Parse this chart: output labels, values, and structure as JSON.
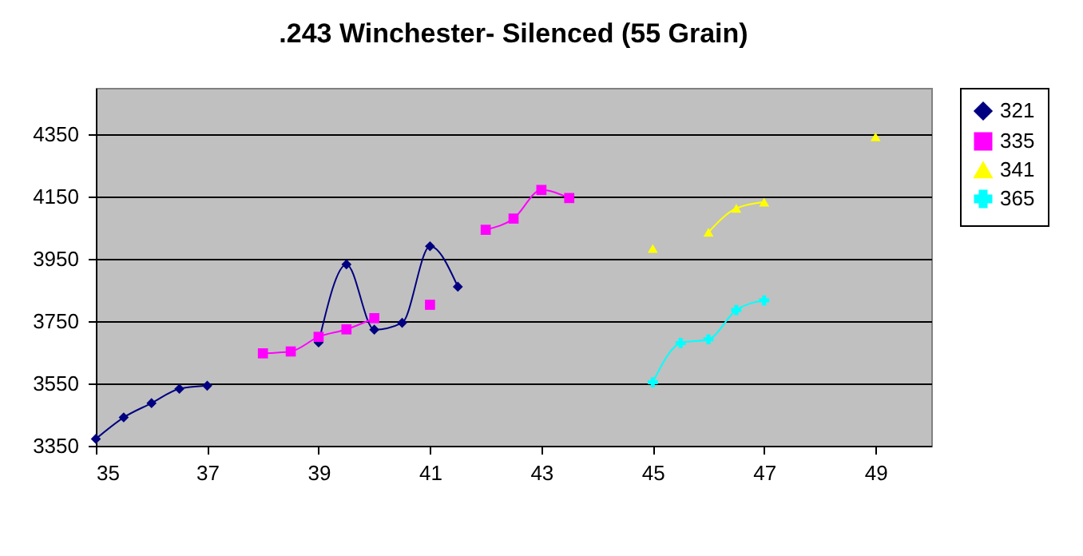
{
  "chart_data": {
    "type": "line",
    "title": ".243 Winchester- Silenced (55 Grain)",
    "xlim": [
      35,
      50
    ],
    "xticks": [
      35,
      37,
      39,
      41,
      43,
      45,
      47,
      49
    ],
    "ylim": [
      3350,
      4500
    ],
    "yticks": [
      3350,
      3550,
      3750,
      3950,
      4150,
      4350
    ],
    "grid": "y",
    "legend": "right",
    "line_style": "solid",
    "series": [
      {
        "name": "321",
        "color": "#000080",
        "marker": "diamond",
        "x": [
          35,
          35.5,
          36,
          36.5,
          37,
          38,
          39,
          39.5,
          40,
          40.5,
          41,
          41.5
        ],
        "values": [
          3372,
          3441,
          3487,
          3533,
          3543,
          null,
          3682,
          3933,
          3723,
          3745,
          3991,
          3861
        ]
      },
      {
        "name": "335",
        "color": "#ff00ff",
        "marker": "square",
        "x": [
          38,
          38.5,
          39,
          39.5,
          40,
          40.5,
          41,
          41.5,
          42,
          42.5,
          43,
          43.5
        ],
        "values": [
          3647,
          3653,
          3700,
          3724,
          3760,
          null,
          3803,
          null,
          4044,
          4080,
          4172,
          4146
        ]
      },
      {
        "name": "341",
        "color": "#ffff00",
        "marker": "triangle",
        "x": [
          45,
          45.5,
          46,
          46.5,
          47,
          48,
          49
        ],
        "values": [
          3984,
          null,
          4036,
          4113,
          4133,
          null,
          4343
        ]
      },
      {
        "name": "365",
        "color": "#00ffff",
        "marker": "cross",
        "x": [
          45,
          45.5,
          46,
          46.5,
          47
        ],
        "values": [
          3554,
          3680,
          3692,
          3786,
          3817
        ]
      }
    ]
  }
}
